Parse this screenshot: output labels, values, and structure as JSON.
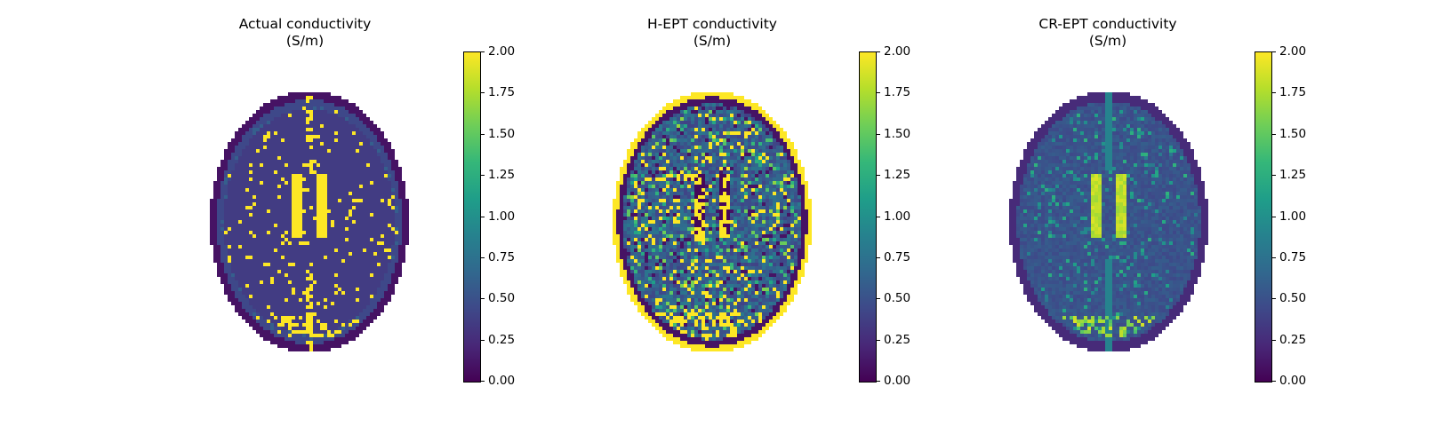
{
  "colors": {
    "background": "#ffffff",
    "colormap": [
      "#440154",
      "#482878",
      "#3e4989",
      "#31688e",
      "#26828e",
      "#1f9e89",
      "#35b779",
      "#6ece58",
      "#b5de2b",
      "#fde725"
    ]
  },
  "panels": [
    {
      "title_line1": "Actual conductivity",
      "title_line2": "(S/m)",
      "brain_style": "actual"
    },
    {
      "title_line1": "H-EPT conductivity",
      "title_line2": "(S/m)",
      "brain_style": "hept"
    },
    {
      "title_line1": "CR-EPT conductivity",
      "title_line2": "(S/m)",
      "brain_style": "crept"
    }
  ],
  "colorbar": {
    "ticks": [
      "0.00",
      "0.25",
      "0.50",
      "0.75",
      "1.00",
      "1.25",
      "1.50",
      "1.75",
      "2.00"
    ],
    "min": 0,
    "max": 2
  }
}
